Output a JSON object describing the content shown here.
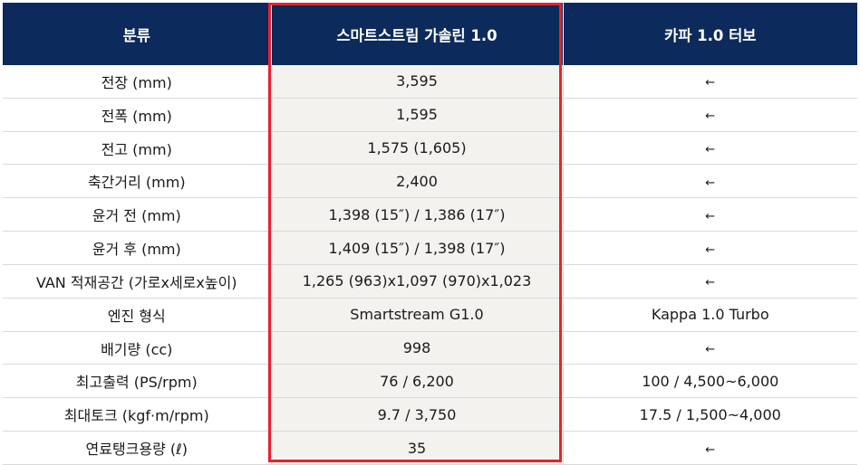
{
  "colors": {
    "header_bg": "#0c2a5b",
    "highlight_border": "#e8222d",
    "highlight_bg": "#f3f2ef"
  },
  "header": [
    "분류",
    "스마트스트림 가솔린 1.0",
    "카파 1.0 터보"
  ],
  "rows": [
    [
      "전장 (mm)",
      "3,595",
      "←"
    ],
    [
      "전폭 (mm)",
      "1,595",
      "←"
    ],
    [
      "전고 (mm)",
      "1,575 (1,605)",
      "←"
    ],
    [
      "축간거리 (mm)",
      "2,400",
      "←"
    ],
    [
      "윤거 전 (mm)",
      "1,398 (15″) / 1,386 (17″)",
      "←"
    ],
    [
      "윤거 후 (mm)",
      "1,409 (15″) / 1,398 (17″)",
      "←"
    ],
    [
      "VAN 적재공간 (가로x세로x높이)",
      "1,265 (963)x1,097 (970)x1,023",
      "←"
    ],
    [
      "엔진 형식",
      "Smartstream G1.0",
      "Kappa 1.0 Turbo"
    ],
    [
      "배기량 (cc)",
      "998",
      "←"
    ],
    [
      "최고출력 (PS/rpm)",
      "76 / 6,200",
      "100 / 4,500~6,000"
    ],
    [
      "최대토크 (kgf·m/rpm)",
      "9.7 / 3,750",
      "17.5 / 1,500~4,000"
    ],
    [
      "연료탱크용량 (ℓ)",
      "35",
      "←"
    ]
  ]
}
